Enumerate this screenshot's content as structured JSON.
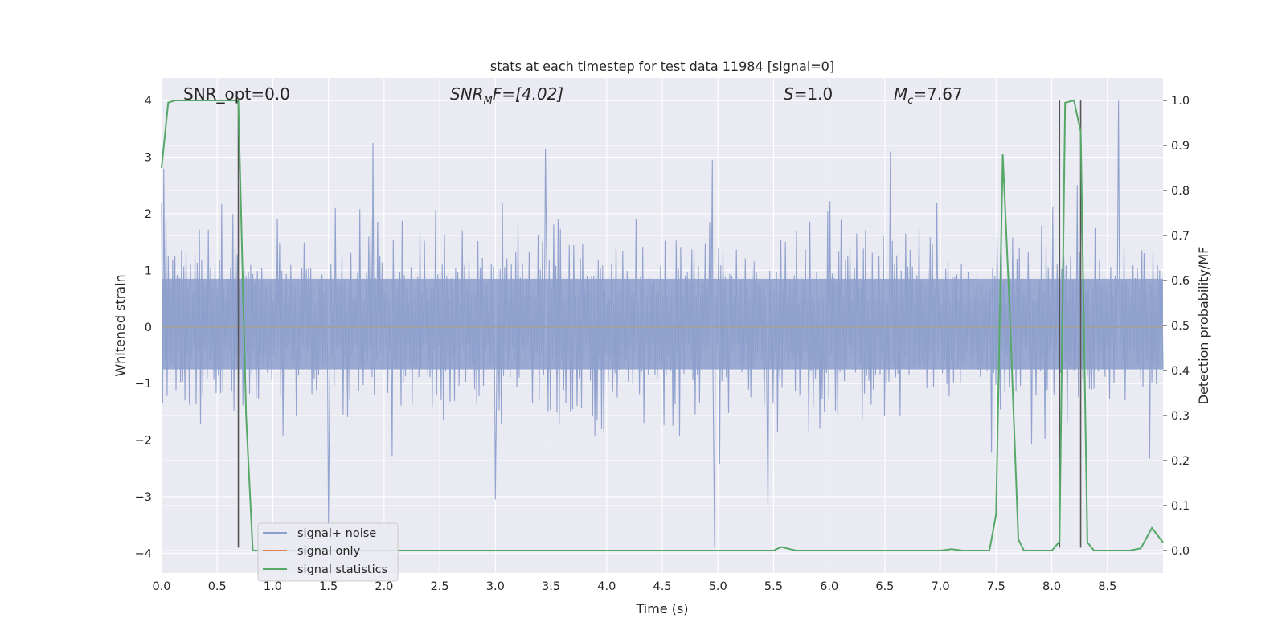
{
  "chart_data": {
    "type": "line",
    "title": "stats at each timestep for test data 11984 [signal=0]",
    "xlabel": "Time (s)",
    "ylabel_left": "Whitened strain",
    "ylabel_right": "Detection probability/MF",
    "xlim": [
      0.0,
      9.0
    ],
    "ylim_left": [
      -4.35,
      4.4
    ],
    "ylim_right": [
      -0.05,
      1.05
    ],
    "x_ticks": [
      "0.0",
      "0.5",
      "1.0",
      "1.5",
      "2.0",
      "2.5",
      "3.0",
      "3.5",
      "4.0",
      "4.5",
      "5.0",
      "5.5",
      "6.0",
      "6.5",
      "7.0",
      "7.5",
      "8.0",
      "8.5"
    ],
    "y_ticks_left": [
      "4",
      "3",
      "2",
      "1",
      "0",
      "−1",
      "−2",
      "−3",
      "−4"
    ],
    "y_ticks_right": [
      "1.0",
      "0.9",
      "0.8",
      "0.7",
      "0.6",
      "0.5",
      "0.4",
      "0.3",
      "0.2",
      "0.1",
      "0.0"
    ],
    "grid": true,
    "legend_position": "lower-left",
    "annotations": {
      "snr_opt": "SNR_opt=0.0",
      "snr_mf_sym": "SNR",
      "snr_mf_sub": "M",
      "snr_mf_tail": "F=[4.02]",
      "s_sym": "S",
      "s_val": "=1.0",
      "mc_sym": "M",
      "mc_sub": "c",
      "mc_val": "=7.67"
    },
    "vertical_markers_x": [
      0.69,
      8.07,
      8.26
    ],
    "series": [
      {
        "name": "signal+ noise",
        "axis": "left",
        "color": "#8c9ecb",
        "description_stats": {
          "n_points": 900,
          "envelope_max": 4.0,
          "envelope_min": -3.9,
          "core_band": [
            -0.75,
            0.85
          ]
        },
        "notable_peaks": [
          {
            "x": 0.02,
            "y": 2.8
          },
          {
            "x": 1.9,
            "y": 3.25
          },
          {
            "x": 3.45,
            "y": 3.15
          },
          {
            "x": 4.95,
            "y": 2.95
          },
          {
            "x": 6.55,
            "y": 3.1
          },
          {
            "x": 8.6,
            "y": 4.0
          },
          {
            "x": 1.5,
            "y": -3.5
          },
          {
            "x": 4.97,
            "y": -3.9
          },
          {
            "x": 3.0,
            "y": -3.05
          },
          {
            "x": 5.45,
            "y": -3.2
          }
        ]
      },
      {
        "name": "signal only",
        "axis": "left",
        "color": "#dd8452",
        "values_note": "zero",
        "constant": 0
      },
      {
        "name": "signal statistics",
        "axis": "right",
        "color": "#55a868",
        "x": [
          0.0,
          0.06,
          0.12,
          0.3,
          0.5,
          0.69,
          0.76,
          0.82,
          1.0,
          2.0,
          3.0,
          4.0,
          5.0,
          5.5,
          5.57,
          5.7,
          6.0,
          6.5,
          6.9,
          7.0,
          7.1,
          7.2,
          7.44,
          7.5,
          7.56,
          7.62,
          7.7,
          7.75,
          8.0,
          8.07,
          8.12,
          8.2,
          8.26,
          8.32,
          8.38,
          8.5,
          8.7,
          8.8,
          8.9,
          9.0
        ],
        "y": [
          0.85,
          0.995,
          1.0,
          1.0,
          1.0,
          1.0,
          0.3,
          0.0,
          0.0,
          0.0,
          0.0,
          0.0,
          0.0,
          0.0,
          0.008,
          0.0,
          0.0,
          0.0,
          0.0,
          0.0,
          0.003,
          0.0,
          0.0,
          0.08,
          0.88,
          0.55,
          0.025,
          0.0,
          0.0,
          0.02,
          0.995,
          1.0,
          0.93,
          0.018,
          0.0,
          0.0,
          0.0,
          0.005,
          0.05,
          0.018
        ]
      }
    ]
  }
}
